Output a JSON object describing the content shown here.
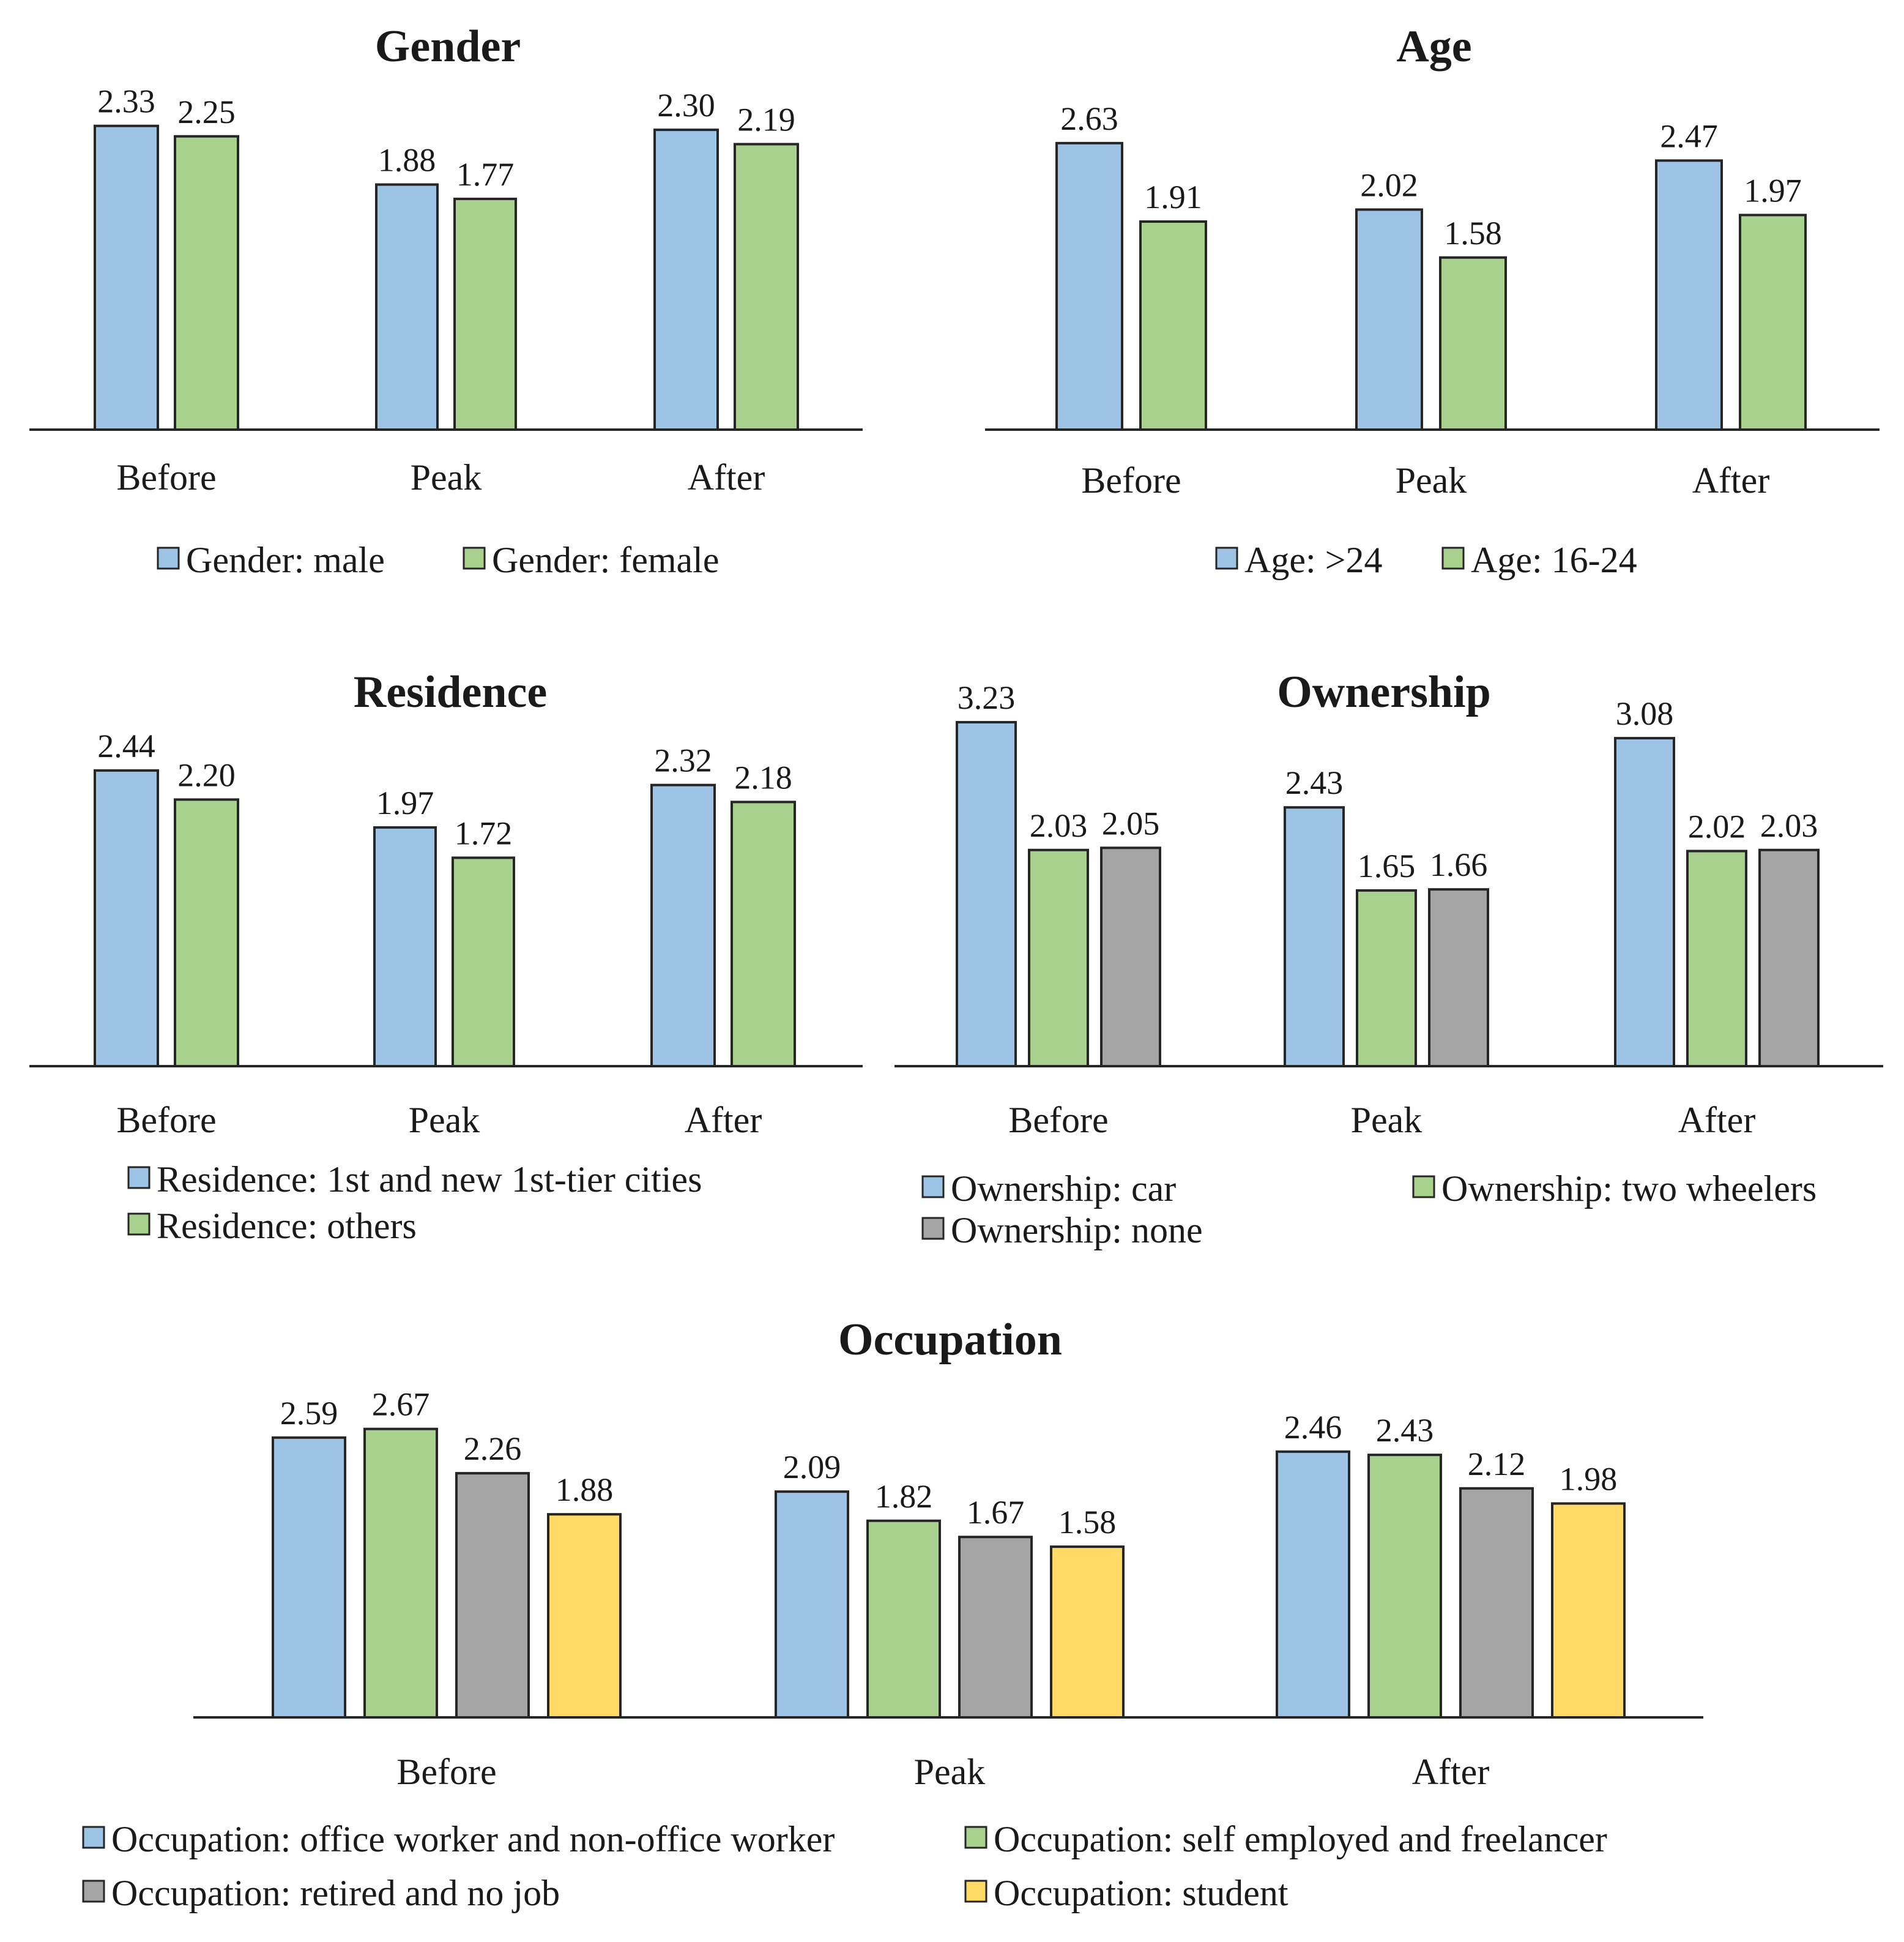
{
  "colors": {
    "blue": "#9dc3e6",
    "green": "#a9d18e",
    "gray": "#a5a5a5",
    "yellow": "#ffd966",
    "outline": "#262626"
  },
  "chart_data": [
    {
      "type": "bar",
      "title": "Gender",
      "categories": [
        "Before",
        "Peak",
        "After"
      ],
      "series": [
        {
          "name": "Gender: male",
          "color": "blue",
          "values": [
            2.33,
            1.88,
            2.3
          ],
          "labels": [
            "2.33",
            "1.88",
            "2.30"
          ]
        },
        {
          "name": "Gender: female",
          "color": "green",
          "values": [
            2.25,
            1.77,
            2.19
          ],
          "labels": [
            "2.25",
            "1.77",
            "2.19"
          ]
        }
      ],
      "ylim": [
        0,
        2.5
      ],
      "xlabel": "",
      "ylabel": "",
      "grid": false,
      "legend": "bottom"
    },
    {
      "type": "bar",
      "title": "Age",
      "categories": [
        "Before",
        "Peak",
        "After"
      ],
      "series": [
        {
          "name": "Age: >24",
          "color": "blue",
          "values": [
            2.63,
            2.02,
            2.47
          ],
          "labels": [
            "2.63",
            "2.02",
            "2.47"
          ]
        },
        {
          "name": "Age: 16-24",
          "color": "green",
          "values": [
            1.91,
            1.58,
            1.97
          ],
          "labels": [
            "1.91",
            "1.58",
            "1.97"
          ]
        }
      ],
      "ylim": [
        0,
        3.2
      ],
      "xlabel": "",
      "ylabel": "",
      "grid": false,
      "legend": "bottom"
    },
    {
      "type": "bar",
      "title": "Residence",
      "categories": [
        "Before",
        "Peak",
        "After"
      ],
      "series": [
        {
          "name": "Residence: 1st and new 1st-tier cities",
          "color": "blue",
          "values": [
            2.44,
            1.97,
            2.32
          ],
          "labels": [
            "2.44",
            "1.97",
            "2.32"
          ]
        },
        {
          "name": "Residence: others",
          "color": "green",
          "values": [
            2.2,
            1.72,
            2.18
          ],
          "labels": [
            "2.20",
            "1.72",
            "2.18"
          ]
        }
      ],
      "ylim": [
        0,
        2.6
      ],
      "xlabel": "",
      "ylabel": "",
      "grid": false,
      "legend": "bottom"
    },
    {
      "type": "bar",
      "title": "Ownership",
      "categories": [
        "Before",
        "Peak",
        "After"
      ],
      "series": [
        {
          "name": "Ownership: car",
          "color": "blue",
          "values": [
            3.23,
            2.43,
            3.08
          ],
          "labels": [
            "3.23",
            "2.43",
            "3.08"
          ]
        },
        {
          "name": "Ownership: two wheelers",
          "color": "green",
          "values": [
            2.03,
            1.65,
            2.02
          ],
          "labels": [
            "2.03",
            "1.65",
            "2.02"
          ]
        },
        {
          "name": "Ownership: none",
          "color": "gray",
          "values": [
            2.05,
            1.66,
            2.03
          ],
          "labels": [
            "2.05",
            "1.66",
            "2.03"
          ]
        }
      ],
      "ylim": [
        0,
        3.5
      ],
      "xlabel": "",
      "ylabel": "",
      "grid": false,
      "legend": "bottom"
    },
    {
      "type": "bar",
      "title": "Occupation",
      "categories": [
        "Before",
        "Peak",
        "After"
      ],
      "series": [
        {
          "name": "Occupation: office worker and non-office worker",
          "color": "blue",
          "values": [
            2.59,
            2.09,
            2.46
          ],
          "labels": [
            "2.59",
            "2.09",
            "2.46"
          ]
        },
        {
          "name": "Occupation: self employed and freelancer",
          "color": "green",
          "values": [
            2.67,
            1.82,
            2.43
          ],
          "labels": [
            "2.67",
            "1.82",
            "2.43"
          ]
        },
        {
          "name": "Occupation: retired and no job",
          "color": "gray",
          "values": [
            2.26,
            1.67,
            2.12
          ],
          "labels": [
            "2.26",
            "1.67",
            "2.12"
          ]
        },
        {
          "name": "Occupation: student",
          "color": "yellow",
          "values": [
            1.88,
            1.58,
            1.98
          ],
          "labels": [
            "1.88",
            "1.58",
            "1.98"
          ]
        }
      ],
      "ylim": [
        0,
        3.0
      ],
      "xlabel": "",
      "ylabel": "",
      "grid": false,
      "legend": "bottom"
    }
  ]
}
